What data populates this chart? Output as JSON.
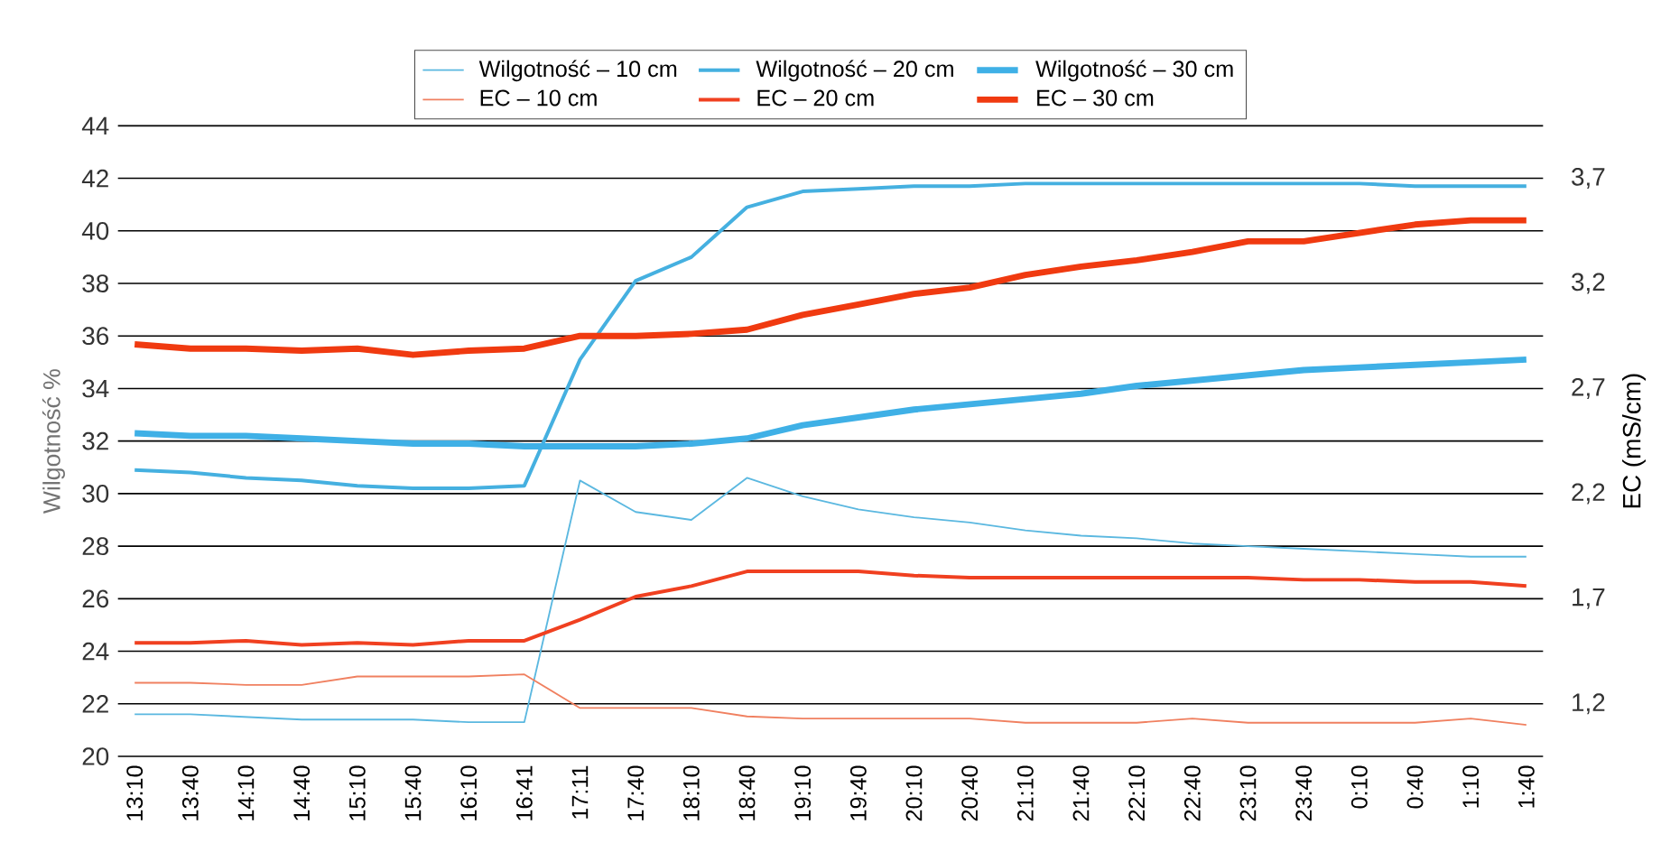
{
  "chart_data": {
    "type": "line",
    "ylabel": "Wilgotność %",
    "y2label": "EC (mS/cm)",
    "categories": [
      "13:10",
      "13:40",
      "14:10",
      "14:40",
      "15:10",
      "15:40",
      "16:10",
      "16:41",
      "17:11",
      "17:40",
      "18:10",
      "18:40",
      "19:10",
      "19:40",
      "20:10",
      "20:40",
      "21:10",
      "21:40",
      "22:10",
      "22:40",
      "23:10",
      "23:40",
      "0:10",
      "0:40",
      "1:10",
      "1:40"
    ],
    "ylim": [
      20,
      44
    ],
    "yticks": [
      20,
      22,
      24,
      26,
      28,
      30,
      32,
      34,
      36,
      38,
      40,
      42,
      44
    ],
    "y2lim": [
      0.95,
      3.95
    ],
    "y2ticks": [
      {
        "value": 1.2,
        "label": "1,2"
      },
      {
        "value": 1.7,
        "label": "1,7"
      },
      {
        "value": 2.2,
        "label": "2,2"
      },
      {
        "value": 2.7,
        "label": "2,7"
      },
      {
        "value": 3.2,
        "label": "3,2"
      },
      {
        "value": 3.7,
        "label": "3,7"
      }
    ],
    "grid": "y",
    "legend": "top",
    "series": [
      {
        "name": "Wilgotność – 10 cm",
        "color": "#5bb8e0",
        "values": [
          21.6,
          21.6,
          21.5,
          21.4,
          21.4,
          21.4,
          21.3,
          21.3,
          30.5,
          29.3,
          29.0,
          30.6,
          29.9,
          29.4,
          29.1,
          28.9,
          28.6,
          28.4,
          28.3,
          28.1,
          28.0,
          27.9,
          27.8,
          27.7,
          27.6,
          27.6
        ]
      },
      {
        "name": "Wilgotność – 20 cm",
        "color": "#45b0e0",
        "values": [
          30.9,
          30.8,
          30.6,
          30.5,
          30.3,
          30.2,
          30.2,
          30.3,
          35.1,
          38.1,
          39.0,
          40.9,
          41.5,
          41.6,
          41.7,
          41.7,
          41.8,
          41.8,
          41.8,
          41.8,
          41.8,
          41.8,
          41.8,
          41.7,
          41.7,
          41.7
        ]
      },
      {
        "name": "Wilgotność – 30 cm",
        "color": "#3fb0e6",
        "values": [
          32.3,
          32.2,
          32.2,
          32.1,
          32.0,
          31.9,
          31.9,
          31.8,
          31.8,
          31.8,
          31.9,
          32.1,
          32.6,
          32.9,
          33.2,
          33.4,
          33.6,
          33.8,
          34.1,
          34.3,
          34.5,
          34.7,
          34.8,
          34.9,
          35.0,
          35.1
        ]
      },
      {
        "name": "EC – 10 cm",
        "color": "#f08060",
        "axis": "y2",
        "values": [
          1.3,
          1.3,
          1.29,
          1.29,
          1.33,
          1.33,
          1.33,
          1.34,
          1.18,
          1.18,
          1.18,
          1.14,
          1.13,
          1.13,
          1.13,
          1.13,
          1.11,
          1.11,
          1.11,
          1.13,
          1.11,
          1.11,
          1.11,
          1.11,
          1.13,
          1.1
        ]
      },
      {
        "name": "EC – 20 cm",
        "color": "#f04020",
        "axis": "y2",
        "values": [
          1.49,
          1.49,
          1.5,
          1.48,
          1.49,
          1.48,
          1.5,
          1.5,
          1.6,
          1.71,
          1.76,
          1.83,
          1.83,
          1.83,
          1.81,
          1.8,
          1.8,
          1.8,
          1.8,
          1.8,
          1.8,
          1.79,
          1.79,
          1.78,
          1.78,
          1.76
        ]
      },
      {
        "name": "EC – 30 cm",
        "color": "#f03a10",
        "axis": "y2",
        "values": [
          2.91,
          2.89,
          2.89,
          2.88,
          2.89,
          2.86,
          2.88,
          2.89,
          2.95,
          2.95,
          2.96,
          2.98,
          3.05,
          3.1,
          3.15,
          3.18,
          3.24,
          3.28,
          3.31,
          3.35,
          3.4,
          3.4,
          3.44,
          3.48,
          3.5,
          3.5
        ]
      }
    ]
  }
}
